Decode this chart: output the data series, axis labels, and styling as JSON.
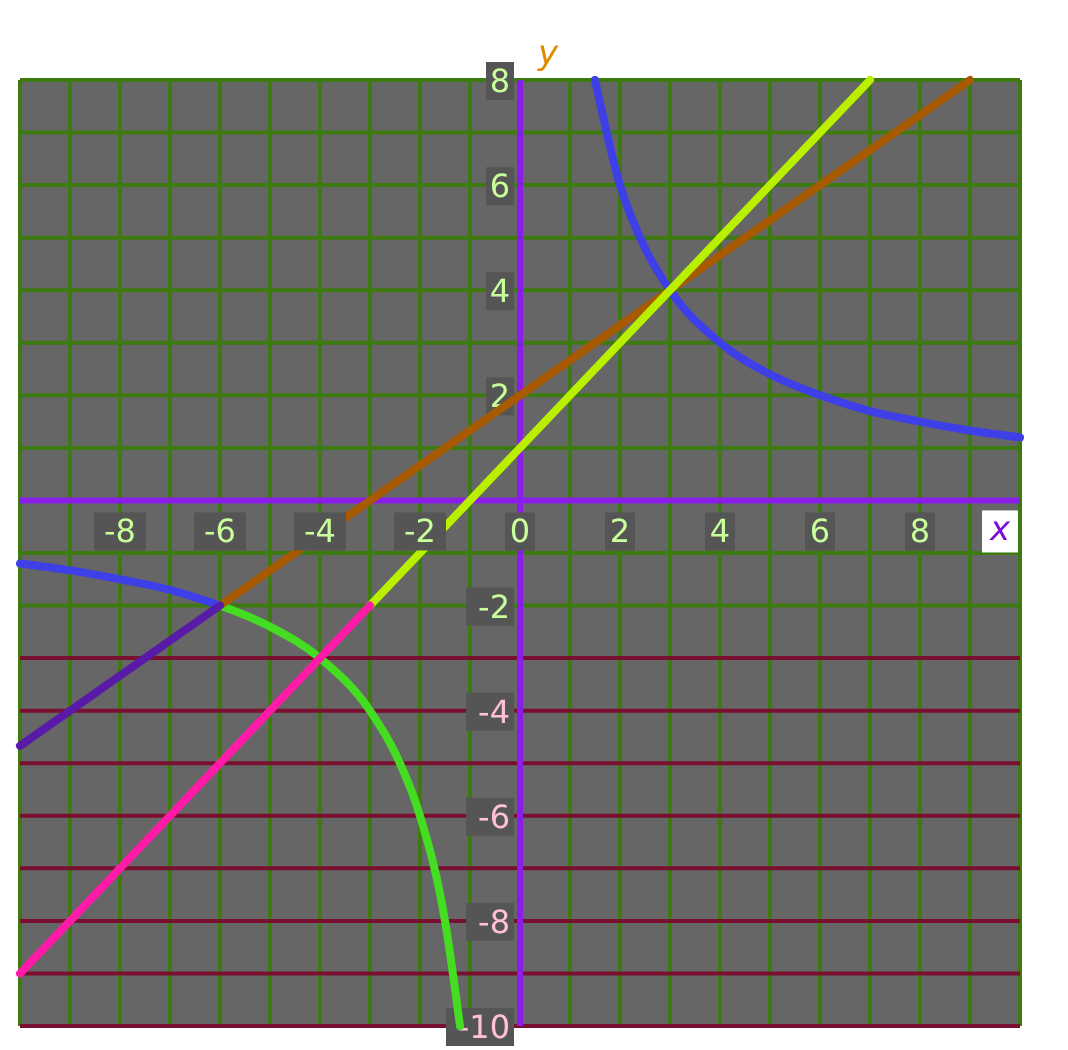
{
  "chart_data": {
    "type": "line",
    "xlabel": "x",
    "ylabel": "y",
    "xlim": [
      -10,
      10
    ],
    "ylim": [
      -10,
      8
    ],
    "xticks": [
      -8,
      -6,
      -4,
      -2,
      0,
      2,
      4,
      6,
      8
    ],
    "yticks": [
      -10,
      -8,
      -6,
      -4,
      -2,
      2,
      4,
      6,
      8
    ],
    "grid": true,
    "marker": "none",
    "line_style": "solid",
    "series": [
      {
        "color": "#3f3fe8",
        "x": [
          1.5,
          2,
          2.5,
          3,
          4,
          5,
          6,
          7,
          8,
          9,
          10
        ],
        "values": [
          8,
          6,
          4.8,
          4,
          3,
          2.4,
          2,
          1.7,
          1.5,
          1.33,
          1.2
        ]
      },
      {
        "color": "#3f3fe8",
        "x": [
          -10,
          -9,
          -8,
          -7,
          -6
        ],
        "values": [
          -1.2,
          -1.33,
          -1.5,
          -1.7,
          -2
        ]
      },
      {
        "color": "#44dd22",
        "x": [
          -6,
          -5,
          -4,
          -3,
          -2.5,
          -2,
          -1.5,
          -1.2
        ],
        "values": [
          -2,
          -2.4,
          -3,
          -4,
          -4.8,
          -6,
          -8,
          -10
        ]
      },
      {
        "color": "#a85a00",
        "x": [
          -6,
          9
        ],
        "values": [
          -2,
          8
        ]
      },
      {
        "color": "#5a1aa8",
        "x": [
          -10,
          -6
        ],
        "values": [
          -4.67,
          -2
        ]
      },
      {
        "color": "#b8f000",
        "x": [
          -3,
          7
        ],
        "values": [
          -2,
          8
        ]
      },
      {
        "color": "#ff1aa8",
        "x": [
          -10,
          -3
        ],
        "values": [
          -9,
          -2
        ]
      }
    ]
  }
}
